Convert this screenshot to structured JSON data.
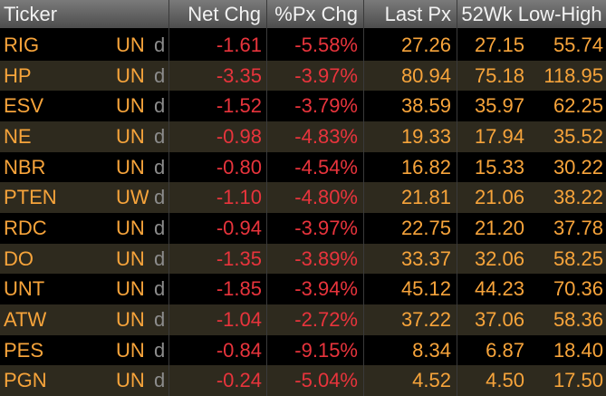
{
  "colors": {
    "background": "#000000",
    "row_alt": "#2e2a1e",
    "header_bg": "#6a6a6a",
    "header_text": "#f2f2f2",
    "ticker_text": "#f7a43b",
    "negative_text": "#e8343c",
    "flag_text": "#8c8c8c"
  },
  "header": {
    "ticker": "Ticker",
    "net_chg": "Net Chg",
    "px_chg": "%Px Chg",
    "last_px": "Last Px",
    "range": "52Wk Low-High"
  },
  "rows": [
    {
      "ticker": "RIG",
      "exch": "UN",
      "flag": "d",
      "net_chg": "-1.61",
      "pct_chg": "-5.58%",
      "last": "27.26",
      "low": "27.15",
      "high": "55.74"
    },
    {
      "ticker": "HP",
      "exch": "UN",
      "flag": "d",
      "net_chg": "-3.35",
      "pct_chg": "-3.97%",
      "last": "80.94",
      "low": "75.18",
      "high": "118.95"
    },
    {
      "ticker": "ESV",
      "exch": "UN",
      "flag": "d",
      "net_chg": "-1.52",
      "pct_chg": "-3.79%",
      "last": "38.59",
      "low": "35.97",
      "high": "62.25"
    },
    {
      "ticker": "NE",
      "exch": "UN",
      "flag": "d",
      "net_chg": "-0.98",
      "pct_chg": "-4.83%",
      "last": "19.33",
      "low": "17.94",
      "high": "35.52"
    },
    {
      "ticker": "NBR",
      "exch": "UN",
      "flag": "d",
      "net_chg": "-0.80",
      "pct_chg": "-4.54%",
      "last": "16.82",
      "low": "15.33",
      "high": "30.22"
    },
    {
      "ticker": "PTEN",
      "exch": "UW",
      "flag": "d",
      "net_chg": "-1.10",
      "pct_chg": "-4.80%",
      "last": "21.81",
      "low": "21.06",
      "high": "38.22"
    },
    {
      "ticker": "RDC",
      "exch": "UN",
      "flag": "d",
      "net_chg": "-0.94",
      "pct_chg": "-3.97%",
      "last": "22.75",
      "low": "21.20",
      "high": "37.78"
    },
    {
      "ticker": "DO",
      "exch": "UN",
      "flag": "d",
      "net_chg": "-1.35",
      "pct_chg": "-3.89%",
      "last": "33.37",
      "low": "32.06",
      "high": "58.25"
    },
    {
      "ticker": "UNT",
      "exch": "UN",
      "flag": "d",
      "net_chg": "-1.85",
      "pct_chg": "-3.94%",
      "last": "45.12",
      "low": "44.23",
      "high": "70.36"
    },
    {
      "ticker": "ATW",
      "exch": "UN",
      "flag": "d",
      "net_chg": "-1.04",
      "pct_chg": "-2.72%",
      "last": "37.22",
      "low": "37.06",
      "high": "58.36"
    },
    {
      "ticker": "PES",
      "exch": "UN",
      "flag": "d",
      "net_chg": "-0.84",
      "pct_chg": "-9.15%",
      "last": "8.34",
      "low": "6.87",
      "high": "18.40"
    },
    {
      "ticker": "PGN",
      "exch": "UN",
      "flag": "d",
      "net_chg": "-0.24",
      "pct_chg": "-5.04%",
      "last": "4.52",
      "low": "4.50",
      "high": "17.50"
    }
  ]
}
